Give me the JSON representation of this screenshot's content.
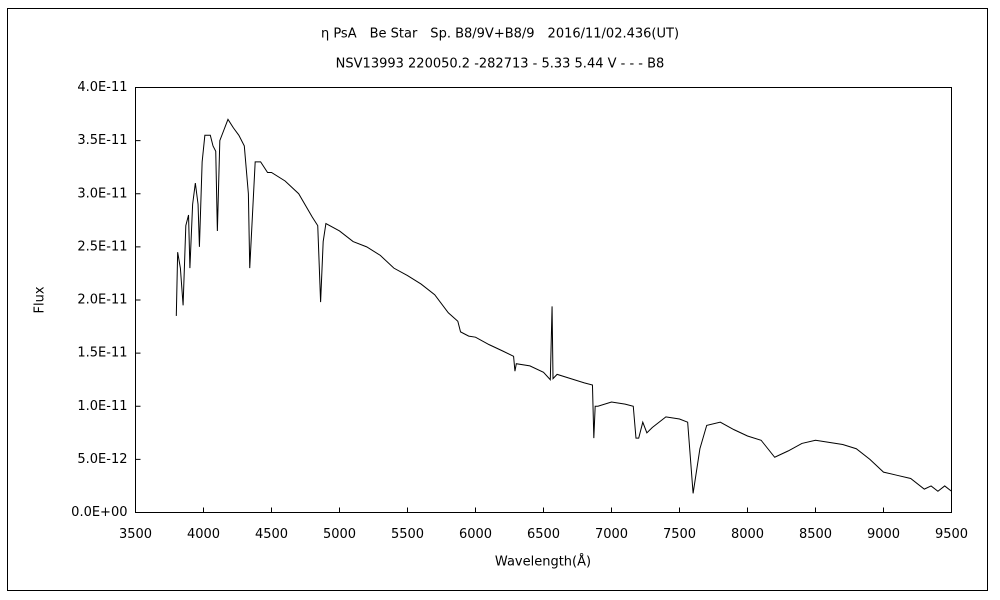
{
  "chart_data": {
    "type": "line",
    "title": "η PsA　Be Star　Sp. B8/9V+B8/9　2016/11/02.436(UT)",
    "subtitle": "NSV13993 220050.2 -282713 - 5.33 5.44 V - - - B8",
    "x_label": "Wavelength(Å)",
    "y_label": "Flux",
    "xlim": [
      3500,
      9500
    ],
    "xticks": [
      3500,
      4000,
      4500,
      5000,
      5500,
      6000,
      6500,
      7000,
      7500,
      8000,
      8500,
      9000,
      9500
    ],
    "ylim": [
      0,
      4e-11
    ],
    "yticks": [
      {
        "value": 0,
        "label": "0.0E+00"
      },
      {
        "value": 5e-12,
        "label": "5.0E-12"
      },
      {
        "value": 1e-11,
        "label": "1.0E-11"
      },
      {
        "value": 1.5e-11,
        "label": "1.5E-11"
      },
      {
        "value": 2e-11,
        "label": "2.0E-11"
      },
      {
        "value": 2.5e-11,
        "label": "2.5E-11"
      },
      {
        "value": 3e-11,
        "label": "3.0E-11"
      },
      {
        "value": 3.5e-11,
        "label": "3.5E-11"
      },
      {
        "value": 4e-11,
        "label": "4.0E-11"
      }
    ],
    "grid": false,
    "x": [
      3800,
      3810,
      3830,
      3850,
      3870,
      3890,
      3900,
      3920,
      3940,
      3960,
      3970,
      3990,
      4010,
      4050,
      4070,
      4090,
      4102,
      4120,
      4150,
      4180,
      4220,
      4260,
      4300,
      4330,
      4340,
      4360,
      4380,
      4420,
      4471,
      4500,
      4600,
      4700,
      4800,
      4840,
      4861,
      4880,
      4900,
      5000,
      5100,
      5200,
      5300,
      5400,
      5500,
      5600,
      5700,
      5800,
      5870,
      5890,
      5950,
      6000,
      6100,
      6200,
      6280,
      6290,
      6300,
      6400,
      6500,
      6550,
      6563,
      6570,
      6600,
      6700,
      6800,
      6860,
      6870,
      6880,
      6900,
      7000,
      7100,
      7160,
      7180,
      7200,
      7230,
      7260,
      7300,
      7400,
      7500,
      7560,
      7600,
      7650,
      7700,
      7800,
      7900,
      8000,
      8100,
      8150,
      8200,
      8300,
      8400,
      8500,
      8600,
      8700,
      8800,
      8900,
      9000,
      9100,
      9200,
      9300,
      9350,
      9400,
      9450,
      9500
    ],
    "series": [
      {
        "name": "Flux",
        "color": "#000000",
        "values": [
          1.85e-11,
          2.45e-11,
          2.3e-11,
          1.95e-11,
          2.7e-11,
          2.8e-11,
          2.3e-11,
          2.9e-11,
          3.1e-11,
          2.9e-11,
          2.5e-11,
          3.3e-11,
          3.55e-11,
          3.55e-11,
          3.45e-11,
          3.4e-11,
          2.65e-11,
          3.5e-11,
          3.6e-11,
          3.7e-11,
          3.62e-11,
          3.55e-11,
          3.45e-11,
          3e-11,
          2.3e-11,
          2.8e-11,
          3.3e-11,
          3.3e-11,
          3.2e-11,
          3.2e-11,
          3.12e-11,
          3e-11,
          2.78e-11,
          2.7e-11,
          1.98e-11,
          2.55e-11,
          2.72e-11,
          2.65e-11,
          2.55e-11,
          2.5e-11,
          2.42e-11,
          2.3e-11,
          2.23e-11,
          2.15e-11,
          2.05e-11,
          1.88e-11,
          1.8e-11,
          1.7e-11,
          1.66e-11,
          1.65e-11,
          1.58e-11,
          1.52e-11,
          1.47e-11,
          1.33e-11,
          1.4e-11,
          1.38e-11,
          1.32e-11,
          1.25e-11,
          1.94e-11,
          1.26e-11,
          1.3e-11,
          1.26e-11,
          1.22e-11,
          1.2e-11,
          7e-12,
          1e-11,
          1e-11,
          1.04e-11,
          1.02e-11,
          1e-11,
          7e-12,
          7e-12,
          8.5e-12,
          7.5e-12,
          8e-12,
          9e-12,
          8.8e-12,
          8.5e-12,
          1.8e-12,
          6e-12,
          8.2e-12,
          8.5e-12,
          7.8e-12,
          7.2e-12,
          6.8e-12,
          6e-12,
          5.2e-12,
          5.8e-12,
          6.5e-12,
          6.8e-12,
          6.6e-12,
          6.4e-12,
          6e-12,
          5e-12,
          3.8e-12,
          3.5e-12,
          3.2e-12,
          2.2e-12,
          2.5e-12,
          2e-12,
          2.5e-12,
          2e-12
        ]
      }
    ]
  }
}
